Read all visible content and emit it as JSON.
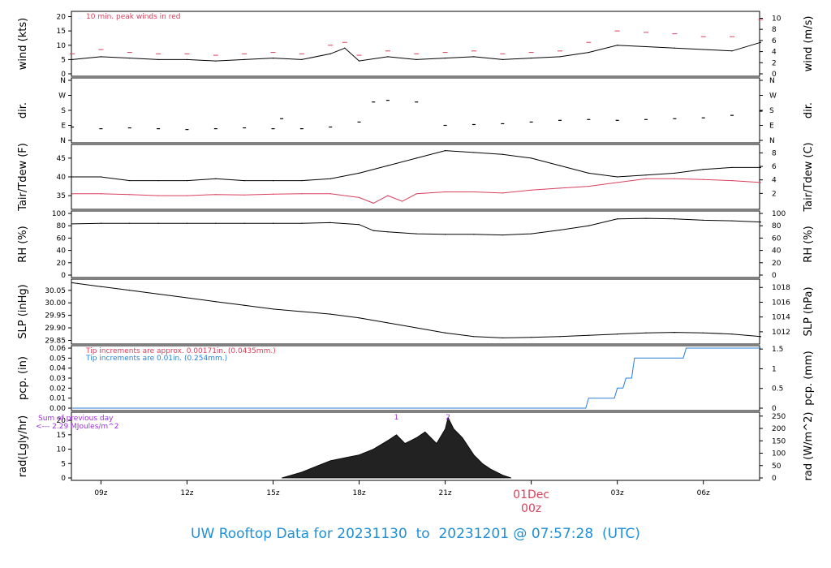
{
  "title": "UW Rooftop Data for 20231130  to  20231201 @ 07:57:28  (UTC)",
  "colors": {
    "black": "#000000",
    "red": "#d9405b",
    "blue": "#2a7fd4",
    "purple": "#9b30d9",
    "title": "#1f8fd6",
    "rad_fill": "#222222"
  },
  "time_axis": {
    "tick_labels": [
      "09z",
      "12z",
      "15z",
      "18z",
      "21z",
      "03z",
      "06z"
    ],
    "tick_hours": [
      9,
      12,
      15,
      18,
      21,
      27,
      30
    ],
    "start_hour": 7.97,
    "end_hour": 31.96,
    "day_marker": {
      "date": "01Dec",
      "hour_label": "00z",
      "hour": 24
    }
  },
  "chart_data": [
    {
      "type": "line",
      "panel": "wind",
      "ylabel_left": "wind (kts)",
      "ylabel_right": "wind (m/s)",
      "ylim": [
        0,
        21
      ],
      "yticks_left": [
        0,
        5,
        10,
        15,
        20
      ],
      "yticks_right": [
        0,
        2,
        4,
        6,
        8,
        10
      ],
      "annotation": "10 min. peak winds in red",
      "series": [
        {
          "hours": [
            8,
            9,
            10,
            11,
            12,
            13,
            14,
            15,
            16,
            17,
            17.5,
            18,
            19,
            20,
            21,
            22,
            23,
            24,
            25,
            26,
            27,
            28,
            29,
            30,
            31,
            32
          ],
          "values": [
            5,
            6,
            5.5,
            5,
            5,
            4.5,
            5,
            5.5,
            5,
            7,
            9,
            4.5,
            6,
            5,
            5.5,
            6,
            5,
            5.5,
            6,
            7.5,
            10,
            9.5,
            9,
            8.5,
            8,
            11
          ]
        },
        {
          "hours": [
            8,
            9,
            10,
            11,
            12,
            13,
            14,
            15,
            16,
            17,
            17.5,
            18,
            19,
            20,
            21,
            22,
            23,
            24,
            25,
            26,
            27,
            28,
            29,
            30,
            31,
            32
          ],
          "values": [
            7,
            8.5,
            7.5,
            7,
            7,
            6.5,
            7,
            7.5,
            7,
            10,
            11,
            6.5,
            8,
            7,
            7.5,
            8,
            7,
            7.5,
            8,
            11,
            15,
            14.5,
            14,
            13,
            13,
            19
          ]
        }
      ]
    },
    {
      "type": "scatter",
      "panel": "dir.",
      "ylabel_left": "dir.",
      "ylabel_right": "dir.",
      "ytick_labels": [
        "N",
        "E",
        "S",
        "W",
        "N"
      ],
      "ytick_degrees": [
        0,
        90,
        180,
        270,
        360
      ],
      "ylim": [
        0,
        360
      ],
      "series": [
        {
          "hours": [
            8,
            9,
            10,
            11,
            12,
            13,
            14,
            15,
            15.3,
            16,
            17,
            18,
            18.5,
            19,
            20,
            21,
            22,
            23,
            24,
            25,
            26,
            27,
            28,
            29,
            30,
            31,
            32
          ],
          "values": [
            80,
            70,
            75,
            70,
            65,
            70,
            75,
            70,
            130,
            70,
            80,
            110,
            230,
            240,
            230,
            90,
            95,
            100,
            110,
            120,
            125,
            120,
            125,
            130,
            135,
            150,
            175
          ]
        }
      ]
    },
    {
      "type": "line",
      "panel": "Tair/Tdew",
      "ylabel_left": "Tair/Tdew (F)",
      "ylabel_right": "Tair/Tdew (C)",
      "ylim": [
        32,
        48
      ],
      "yticks_left": [
        35,
        40,
        45
      ],
      "yticks_right": [
        2,
        4,
        6,
        8
      ],
      "series": [
        {
          "name": "Tair",
          "color": "black",
          "hours": [
            8,
            9,
            10,
            11,
            12,
            13,
            14,
            15,
            16,
            17,
            18,
            19,
            20,
            21,
            22,
            23,
            24,
            25,
            26,
            27,
            28,
            29,
            30,
            31,
            32
          ],
          "values": [
            40,
            40,
            39,
            39,
            39,
            39.5,
            39,
            39,
            39,
            39.5,
            41,
            43,
            45,
            47,
            46.5,
            46,
            45,
            43,
            41,
            40,
            40.5,
            41,
            42,
            42.5,
            42.5
          ]
        },
        {
          "name": "Tdew",
          "color": "red",
          "hours": [
            8,
            9,
            10,
            11,
            12,
            13,
            14,
            15,
            16,
            17,
            18,
            18.5,
            19,
            19.5,
            20,
            21,
            22,
            23,
            24,
            25,
            26,
            27,
            28,
            29,
            30,
            31,
            32
          ],
          "values": [
            35.5,
            35.5,
            35.3,
            35,
            35,
            35.3,
            35.2,
            35.4,
            35.5,
            35.5,
            34.5,
            33,
            35,
            33.5,
            35.5,
            36,
            36,
            35.7,
            36.5,
            37,
            37.5,
            38.5,
            39.5,
            39.5,
            39.3,
            39,
            38.5
          ]
        }
      ]
    },
    {
      "type": "line",
      "panel": "RH",
      "ylabel_left": "RH (%)",
      "ylabel_right": "RH (%)",
      "ylim": [
        0,
        100
      ],
      "yticks_left": [
        0,
        20,
        40,
        60,
        80,
        100
      ],
      "yticks_right": [
        0,
        20,
        40,
        60,
        80,
        100
      ],
      "series": [
        {
          "hours": [
            8,
            9,
            10,
            11,
            12,
            13,
            14,
            15,
            16,
            17,
            18,
            18.5,
            19,
            20,
            21,
            22,
            23,
            24,
            25,
            26,
            27,
            28,
            29,
            30,
            31,
            32
          ],
          "values": [
            83,
            84,
            84,
            84,
            84,
            84,
            84,
            84,
            84,
            85,
            82,
            72,
            70,
            67,
            66,
            66,
            65,
            67,
            73,
            80,
            91,
            92,
            91,
            89,
            88,
            86
          ]
        }
      ]
    },
    {
      "type": "line",
      "panel": "SLP",
      "ylabel_left": "SLP (inHg)",
      "ylabel_right": "SLP (hPa)",
      "ylim": [
        29.845,
        30.085
      ],
      "yticks_left": [
        29.85,
        29.9,
        29.95,
        30.0,
        30.05
      ],
      "ytick_labels_left": [
        "29.85",
        "29.90",
        "29.95",
        "30.00",
        "30.05"
      ],
      "yticks_right": [
        1012,
        1014,
        1016,
        1018
      ],
      "series": [
        {
          "hours": [
            8,
            9,
            10,
            11,
            12,
            13,
            14,
            15,
            16,
            17,
            18,
            19,
            20,
            21,
            22,
            23,
            24,
            25,
            26,
            27,
            28,
            29,
            30,
            31,
            32
          ],
          "values": [
            30.08,
            30.065,
            30.05,
            30.035,
            30.02,
            30.005,
            29.99,
            29.975,
            29.965,
            29.955,
            29.94,
            29.92,
            29.9,
            29.88,
            29.865,
            29.86,
            29.862,
            29.865,
            29.87,
            29.875,
            29.88,
            29.882,
            29.88,
            29.875,
            29.865
          ]
        }
      ]
    },
    {
      "type": "line",
      "panel": "pcp.",
      "ylabel_left": "pcp. (in)",
      "ylabel_right": "pcp. (mm)",
      "ylim": [
        0,
        0.06
      ],
      "yticks_left": [
        0,
        0.01,
        0.02,
        0.03,
        0.04,
        0.05,
        0.06
      ],
      "ytick_labels_left": [
        "0.00",
        "0.01",
        "0.02",
        "0.03",
        "0.04",
        "0.05",
        "0.06"
      ],
      "yticks_right": [
        0,
        0.5,
        1,
        1.5
      ],
      "ytick_labels_right": [
        "0",
        "0.5",
        "1",
        "1.5"
      ],
      "annotations": [
        {
          "text": "Tip increments are approx. 0.00171in. (0.0435mm.)",
          "color": "red"
        },
        {
          "text": "Tip increments are 0.01in. (0.254mm.)",
          "color": "blue"
        }
      ],
      "series": [
        {
          "color": "blue",
          "hours": [
            8,
            25.9,
            26.0,
            26.9,
            27.0,
            27.2,
            27.3,
            27.5,
            27.6,
            29.3,
            29.4,
            32
          ],
          "values": [
            0,
            0,
            0.01,
            0.01,
            0.02,
            0.02,
            0.03,
            0.03,
            0.05,
            0.05,
            0.06,
            0.06
          ]
        }
      ]
    },
    {
      "type": "area",
      "panel": "rad",
      "ylabel_left": "rad(Lgly/hr)",
      "ylabel_right": "rad (W/m^2)",
      "ylim": [
        0,
        22
      ],
      "yticks_left": [
        0,
        5,
        10,
        15,
        20
      ],
      "yticks_right": [
        0,
        50,
        100,
        150,
        200,
        250
      ],
      "annotation_lines": [
        "Sum of previous day",
        "<--- 2.29 MJoules/m^2"
      ],
      "top_marks": [
        {
          "text": "1",
          "hour": 19.3
        },
        {
          "text": "2",
          "hour": 21.1
        }
      ],
      "series": [
        {
          "hours": [
            15.3,
            16,
            16.5,
            17,
            17.5,
            18,
            18.5,
            19,
            19.3,
            19.6,
            20,
            20.3,
            20.7,
            21,
            21.1,
            21.3,
            21.6,
            22,
            22.3,
            22.6,
            23,
            23.3
          ],
          "values": [
            0,
            2,
            4,
            6,
            7,
            8,
            10,
            13,
            15,
            12,
            14,
            16,
            12,
            17,
            21,
            17,
            14,
            8,
            5,
            3,
            1,
            0
          ]
        }
      ]
    }
  ]
}
